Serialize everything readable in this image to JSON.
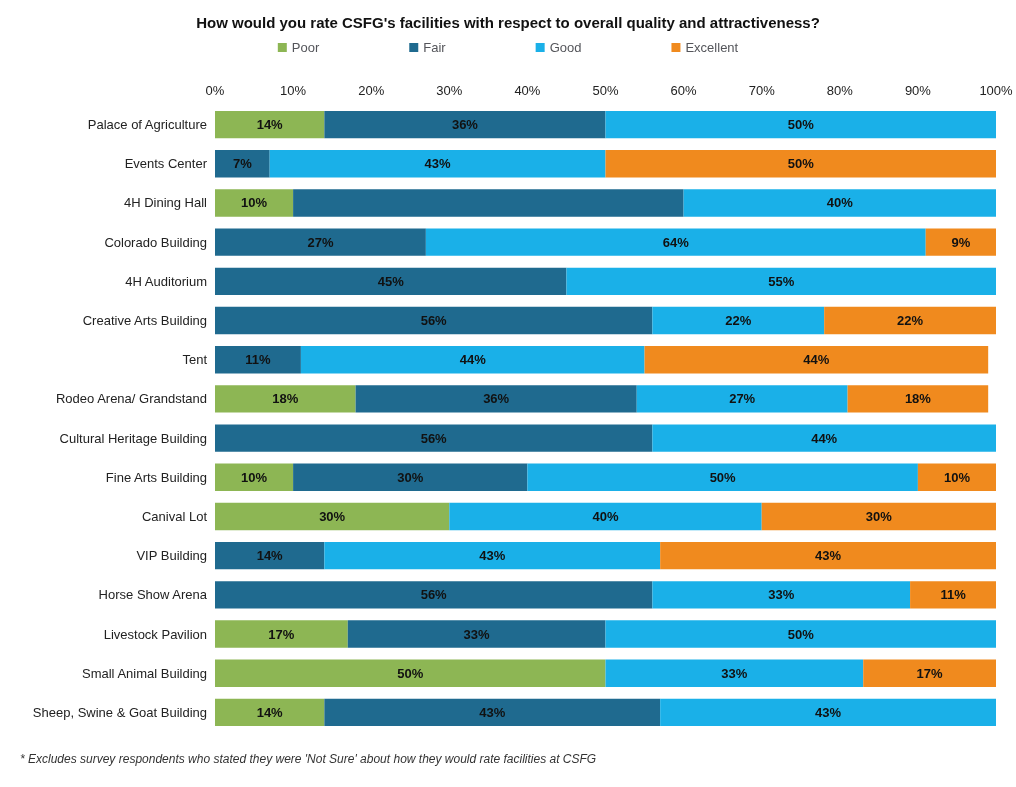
{
  "chart_data": {
    "type": "bar",
    "orientation": "horizontal",
    "stacked": true,
    "title": "How would you rate CSFG's facilities with respect to overall quality and attractiveness?",
    "categories": [
      "Palace of Agriculture",
      "Events Center",
      "4H Dining Hall",
      "Colorado Building",
      "4H Auditorium",
      "Creative Arts Building",
      "Tent",
      "Rodeo Arena/ Grandstand",
      "Cultural Heritage Building",
      "Fine Arts Building",
      "Canival Lot",
      "VIP Building",
      "Horse Show Arena",
      "Livestock Pavilion",
      "Small Animal Building",
      "Sheep, Swine & Goat Building"
    ],
    "series": [
      {
        "name": "Poor",
        "color": "#8db654",
        "values": [
          14,
          null,
          10,
          null,
          null,
          null,
          null,
          18,
          null,
          10,
          30,
          null,
          null,
          17,
          50,
          14
        ],
        "value_labels": [
          "14%",
          null,
          "10%",
          null,
          null,
          null,
          null,
          "18%",
          null,
          "10%",
          "30%",
          null,
          null,
          "17%",
          "50%",
          "14%"
        ]
      },
      {
        "name": "Fair",
        "color": "#1f6a8f",
        "values": [
          36,
          7,
          50,
          27,
          45,
          56,
          11,
          36,
          56,
          30,
          null,
          14,
          56,
          33,
          null,
          43
        ],
        "value_labels": [
          "36%",
          "7%",
          null,
          "27%",
          "45%",
          "56%",
          "11%",
          "36%",
          "56%",
          "30%",
          null,
          "14%",
          "56%",
          "33%",
          null,
          "43%"
        ]
      },
      {
        "name": "Good",
        "color": "#1ab0e8",
        "values": [
          50,
          43,
          40,
          64,
          55,
          22,
          44,
          27,
          44,
          50,
          40,
          43,
          33,
          50,
          33,
          43
        ],
        "value_labels": [
          "50%",
          "43%",
          "40%",
          "64%",
          "55%",
          "22%",
          "44%",
          "27%",
          "44%",
          "50%",
          "40%",
          "43%",
          "33%",
          "50%",
          "33%",
          "43%"
        ]
      },
      {
        "name": "Excellent",
        "color": "#f08a1e",
        "values": [
          null,
          50,
          null,
          9,
          null,
          22,
          44,
          18,
          null,
          10,
          30,
          43,
          11,
          null,
          17,
          null
        ],
        "value_labels": [
          null,
          "50%",
          null,
          "9%",
          null,
          "22%",
          "44%",
          "18%",
          null,
          "10%",
          "30%",
          "43%",
          "11%",
          null,
          "17%",
          null
        ]
      }
    ],
    "xlim": [
      0,
      100
    ],
    "xticks": [
      {
        "value": 0,
        "label": "0%"
      },
      {
        "value": 10,
        "label": "10%"
      },
      {
        "value": 20,
        "label": "20%"
      },
      {
        "value": 30,
        "label": "30%"
      },
      {
        "value": 40,
        "label": "40%"
      },
      {
        "value": 50,
        "label": "50%"
      },
      {
        "value": 60,
        "label": "60%"
      },
      {
        "value": 70,
        "label": "70%"
      },
      {
        "value": 80,
        "label": "80%"
      },
      {
        "value": 90,
        "label": "90%"
      },
      {
        "value": 100,
        "label": "100%"
      }
    ],
    "legend": "top",
    "grid": false,
    "annotations": [
      "* Excludes survey respondents who stated they were 'Not Sure' about how they would rate facilities at CSFG"
    ]
  }
}
